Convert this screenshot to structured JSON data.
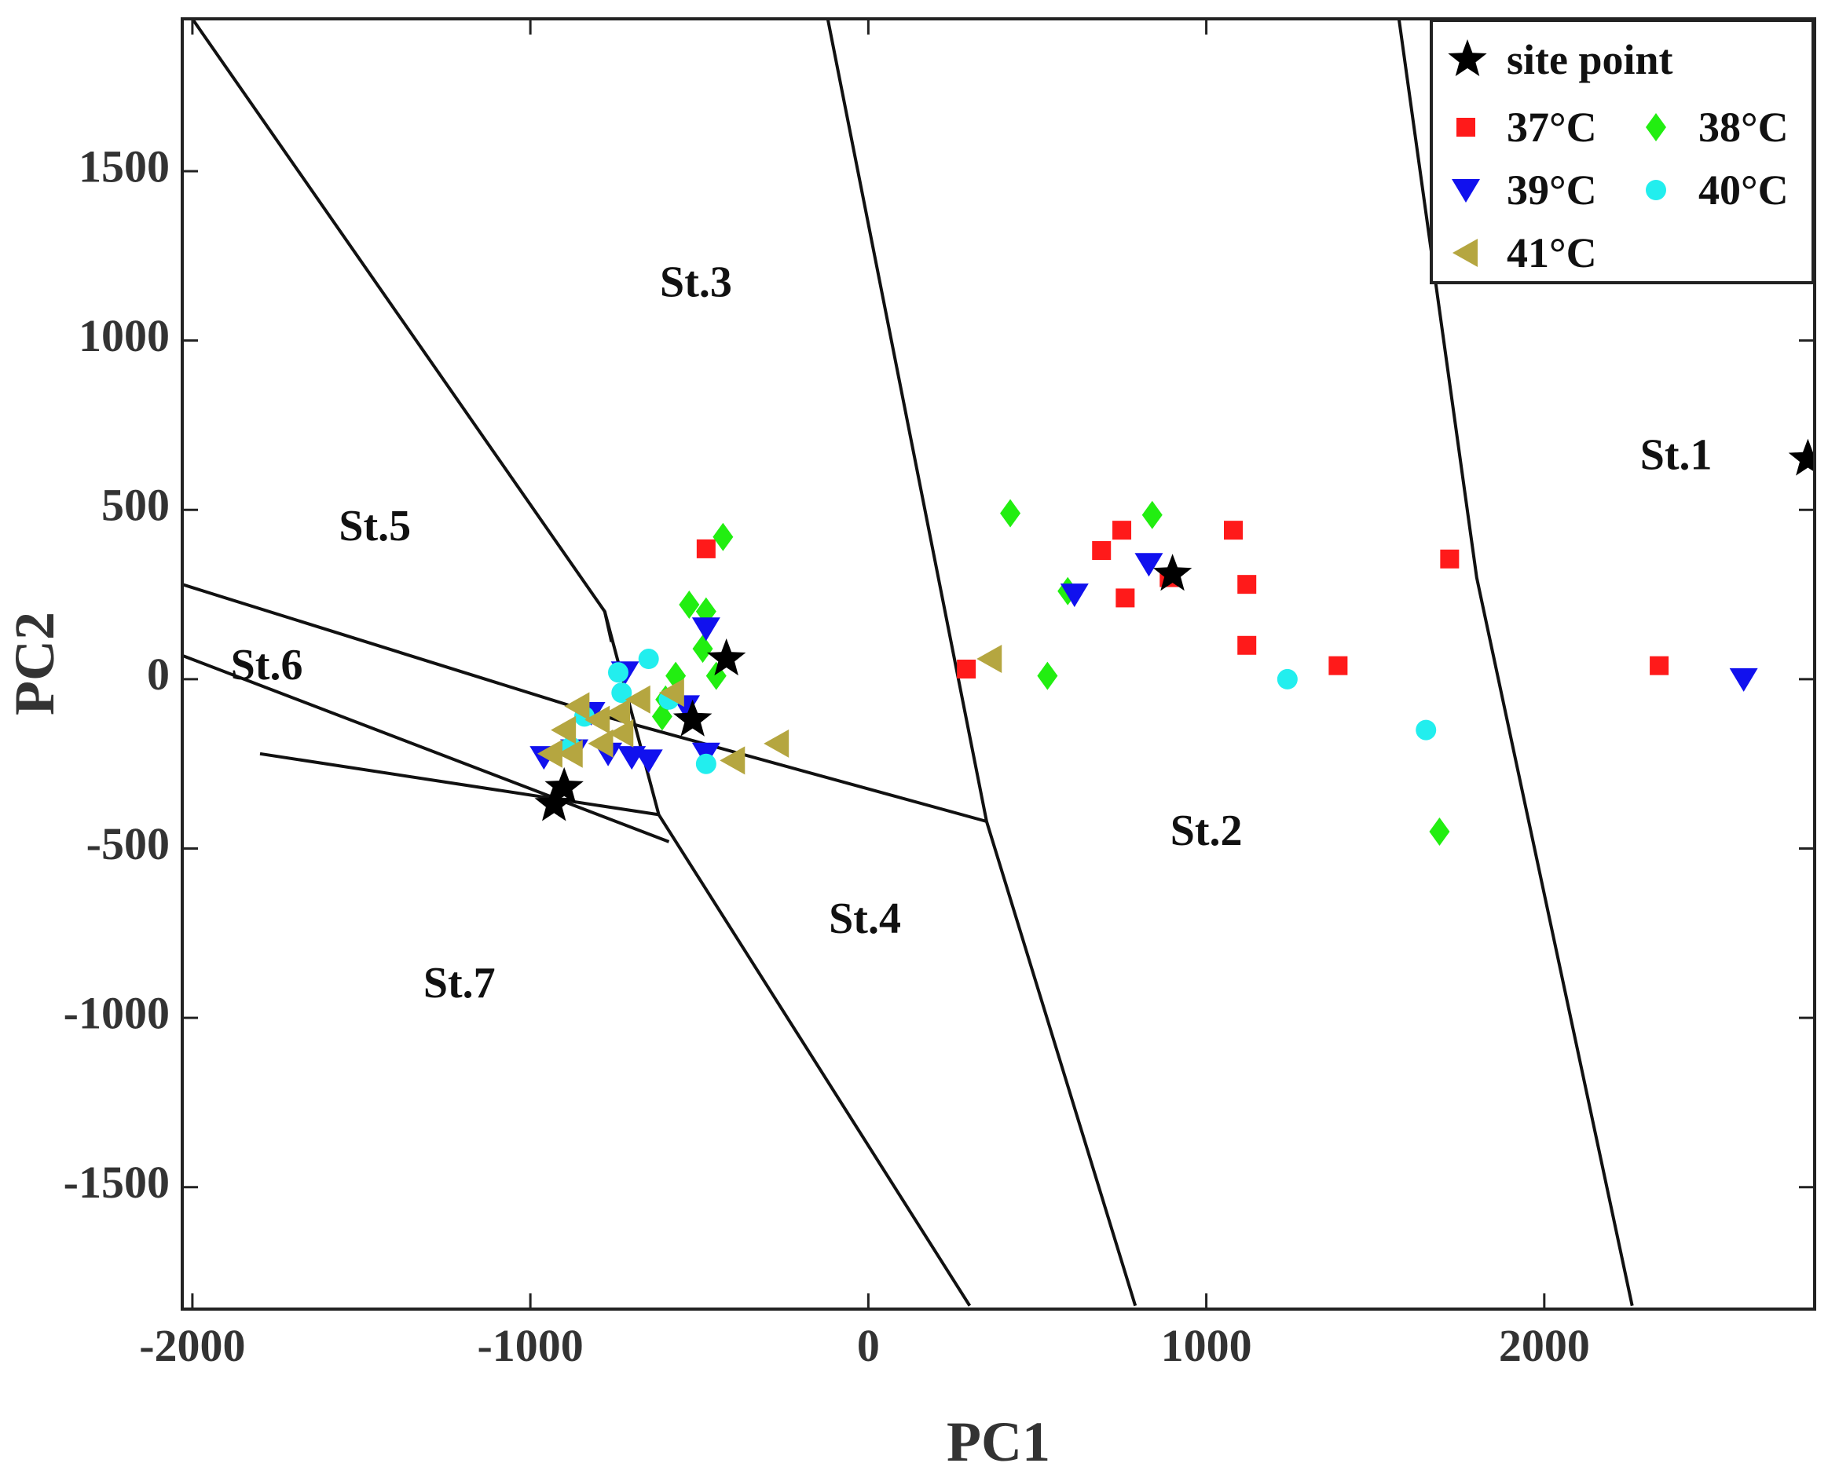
{
  "chart_data": {
    "type": "scatter",
    "xlabel": "PC1",
    "ylabel": "PC2",
    "xlim": [
      -2030,
      2800
    ],
    "ylim": [
      -1860,
      1950
    ],
    "xticks": [
      -2000,
      -1000,
      0,
      1000,
      2000
    ],
    "yticks": [
      -1500,
      -1000,
      -500,
      0,
      500,
      1000,
      1500
    ],
    "xtick_labels": [
      "-2000",
      "-1000",
      "0",
      "1000",
      "2000"
    ],
    "ytick_labels": [
      "-1500",
      "-1000",
      "-500",
      "0",
      "500",
      "1000",
      "1500"
    ],
    "legend": {
      "placement": "top-right",
      "title_entry": "site point",
      "entries": [
        "37°C",
        "38°C",
        "39°C",
        "40°C",
        "41°C"
      ]
    },
    "boundaries": [
      [
        [
          -2000,
          1950
        ],
        [
          -780,
          200
        ],
        [
          -620,
          -400
        ],
        [
          300,
          -1850
        ]
      ],
      [
        [
          -2030,
          280
        ],
        [
          -780,
          -110
        ],
        [
          350,
          -420
        ]
      ],
      [
        [
          -2030,
          70
        ],
        [
          -590,
          -480
        ]
      ],
      [
        [
          -1800,
          -220
        ],
        [
          -620,
          -400
        ]
      ],
      [
        [
          -780,
          200
        ],
        [
          -760,
          110
        ]
      ],
      [
        [
          -120,
          1950
        ],
        [
          350,
          -420
        ],
        [
          790,
          -1850
        ]
      ],
      [
        [
          1570,
          1950
        ],
        [
          1800,
          300
        ],
        [
          2260,
          -1850
        ]
      ]
    ],
    "regions": [
      {
        "label": "St.1",
        "x": 2390,
        "y": 650
      },
      {
        "label": "St.2",
        "x": 1000,
        "y": -460
      },
      {
        "label": "St.3",
        "x": -510,
        "y": 1160
      },
      {
        "label": "St.4",
        "x": -10,
        "y": -720
      },
      {
        "label": "St.5",
        "x": -1460,
        "y": 440
      },
      {
        "label": "St.6",
        "x": -1780,
        "y": 30
      },
      {
        "label": "St.7",
        "x": -1210,
        "y": -910
      }
    ],
    "series": [
      {
        "name": "site point",
        "marker": "star",
        "color": "#000000",
        "points": [
          [
            2780,
            650
          ],
          [
            900,
            310
          ],
          [
            -420,
            60
          ],
          [
            -520,
            -120
          ],
          [
            -900,
            -320
          ],
          [
            -930,
            -370
          ]
        ]
      },
      {
        "name": "37°C",
        "marker": "square",
        "color": "#ff1a1a",
        "points": [
          [
            -480,
            385
          ],
          [
            290,
            30
          ],
          [
            690,
            380
          ],
          [
            750,
            440
          ],
          [
            760,
            240
          ],
          [
            890,
            300
          ],
          [
            1080,
            440
          ],
          [
            1120,
            280
          ],
          [
            1120,
            100
          ],
          [
            1390,
            40
          ],
          [
            1720,
            355
          ],
          [
            2340,
            40
          ]
        ]
      },
      {
        "name": "38°C",
        "marker": "diamond",
        "color": "#22ee11",
        "points": [
          [
            -430,
            420
          ],
          [
            420,
            490
          ],
          [
            840,
            485
          ],
          [
            590,
            260
          ],
          [
            530,
            10
          ],
          [
            1690,
            -450
          ],
          [
            -530,
            220
          ],
          [
            -480,
            200
          ],
          [
            -490,
            90
          ],
          [
            -450,
            10
          ],
          [
            -570,
            10
          ],
          [
            -610,
            -110
          ],
          [
            -600,
            -60
          ]
        ]
      },
      {
        "name": "39°C",
        "marker": "triangle-down",
        "color": "#1111ee",
        "points": [
          [
            2590,
            0
          ],
          [
            610,
            250
          ],
          [
            830,
            340
          ],
          [
            -480,
            150
          ],
          [
            -540,
            -80
          ],
          [
            -650,
            -240
          ],
          [
            -700,
            -230
          ],
          [
            -770,
            -220
          ],
          [
            -870,
            -210
          ],
          [
            -960,
            -230
          ],
          [
            -480,
            -220
          ],
          [
            -720,
            20
          ],
          [
            -820,
            -100
          ]
        ]
      },
      {
        "name": "40°C",
        "marker": "circle",
        "color": "#22eeee",
        "points": [
          [
            1240,
            0
          ],
          [
            1650,
            -150
          ],
          [
            -480,
            -250
          ],
          [
            -650,
            60
          ],
          [
            -740,
            20
          ],
          [
            -730,
            -40
          ],
          [
            -840,
            -110
          ],
          [
            -880,
            -200
          ],
          [
            -590,
            -60
          ]
        ]
      },
      {
        "name": "41°C",
        "marker": "triangle-left",
        "color": "#b5a640",
        "points": [
          [
            360,
            60
          ],
          [
            -270,
            -190
          ],
          [
            -400,
            -240
          ],
          [
            -580,
            -40
          ],
          [
            -680,
            -60
          ],
          [
            -740,
            -100
          ],
          [
            -800,
            -120
          ],
          [
            -860,
            -80
          ],
          [
            -900,
            -150
          ],
          [
            -730,
            -160
          ],
          [
            -880,
            -220
          ],
          [
            -940,
            -220
          ],
          [
            -790,
            -190
          ]
        ]
      }
    ]
  }
}
